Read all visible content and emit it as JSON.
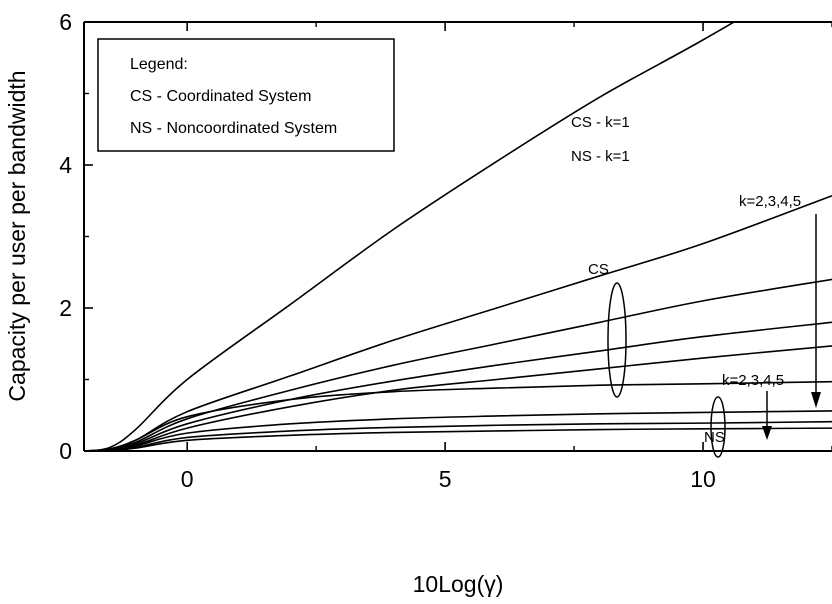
{
  "chart_data": {
    "type": "line",
    "xlabel": "10Log(γ)",
    "ylabel": "Capacity per user per bandwidth",
    "xlim": [
      -2.0,
      12.5
    ],
    "ylim": [
      0,
      6
    ],
    "xticks": [
      0,
      5,
      10
    ],
    "yticks": [
      0,
      2,
      4,
      6
    ],
    "legend": {
      "title": "Legend:",
      "entries": [
        "CS - Coordinated System",
        "NS - Noncoordinated System"
      ]
    },
    "annotations": {
      "cs_k1": "CS - k=1",
      "ns_k1": "NS - k=1",
      "cs_group": "CS",
      "ns_group": "NS",
      "cs_k_range": "k=2,3,4,5",
      "ns_k_range": "k=2,3,4,5"
    },
    "series": [
      {
        "x": [
          -2.0,
          -1.5,
          -1.0,
          0,
          2,
          4,
          6,
          8,
          10,
          12.5
        ],
        "y": [
          0.0,
          0.05,
          0.3,
          1.0,
          2.05,
          3.1,
          4.05,
          4.95,
          5.75,
          6.8
        ]
      },
      {
        "x": [
          -2.0,
          -1.5,
          -1.0,
          0,
          2,
          4,
          6,
          8,
          10,
          12.5
        ],
        "y": [
          0.0,
          0.03,
          0.15,
          0.55,
          1.05,
          1.55,
          2.0,
          2.45,
          2.9,
          3.57
        ]
      },
      {
        "x": [
          -2.0,
          -1.5,
          -1.0,
          0,
          2,
          4,
          6,
          8,
          10,
          12.5
        ],
        "y": [
          0.0,
          0.02,
          0.12,
          0.45,
          0.85,
          1.2,
          1.5,
          1.8,
          2.1,
          2.4
        ]
      },
      {
        "x": [
          -2.0,
          -1.5,
          -1.0,
          0,
          2,
          4,
          6,
          8,
          10,
          12.5
        ],
        "y": [
          0.0,
          0.02,
          0.1,
          0.38,
          0.72,
          0.98,
          1.2,
          1.4,
          1.6,
          1.8
        ]
      },
      {
        "x": [
          -2.0,
          -1.5,
          -1.0,
          0,
          2,
          4,
          6,
          8,
          10,
          12.5
        ],
        "y": [
          0.0,
          0.015,
          0.08,
          0.32,
          0.62,
          0.85,
          1.0,
          1.15,
          1.3,
          1.47
        ]
      },
      {
        "x": [
          -2.0,
          -1.5,
          -1.0,
          0,
          2,
          4,
          6,
          8,
          10,
          12.5
        ],
        "y": [
          0.0,
          0.03,
          0.15,
          0.48,
          0.72,
          0.83,
          0.88,
          0.92,
          0.94,
          0.97
        ]
      },
      {
        "x": [
          -2.0,
          -1.5,
          -1.0,
          0,
          2,
          4,
          6,
          8,
          10,
          12.5
        ],
        "y": [
          0.0,
          0.015,
          0.07,
          0.25,
          0.38,
          0.45,
          0.49,
          0.52,
          0.54,
          0.56
        ]
      },
      {
        "x": [
          -2.0,
          -1.5,
          -1.0,
          0,
          2,
          4,
          6,
          8,
          10,
          12.5
        ],
        "y": [
          0.0,
          0.01,
          0.05,
          0.19,
          0.28,
          0.33,
          0.36,
          0.38,
          0.39,
          0.41
        ]
      },
      {
        "x": [
          -2.0,
          -1.5,
          -1.0,
          0,
          2,
          4,
          6,
          8,
          10,
          12.5
        ],
        "y": [
          0.0,
          0.008,
          0.04,
          0.15,
          0.22,
          0.26,
          0.28,
          0.3,
          0.31,
          0.32
        ]
      }
    ]
  }
}
